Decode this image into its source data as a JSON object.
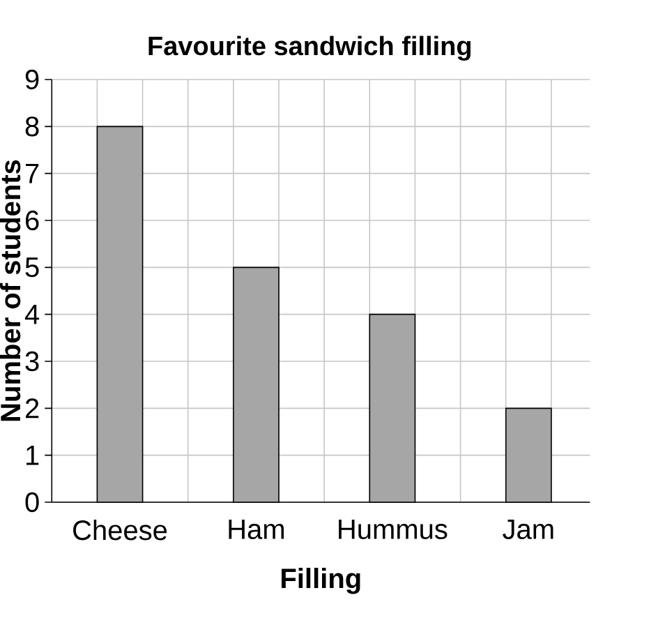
{
  "chart_data": {
    "type": "bar",
    "title": "Favourite sandwich filling",
    "xlabel": "Filling",
    "ylabel": "Number of students",
    "categories": [
      "Cheese",
      "Ham",
      "Hummus",
      "Jam"
    ],
    "values": [
      8,
      5,
      4,
      2
    ],
    "color": "#a6a6a6",
    "ylim": [
      0,
      9
    ],
    "yticks": [
      0,
      1,
      2,
      3,
      4,
      5,
      6,
      7,
      8,
      9
    ],
    "grid": true
  }
}
